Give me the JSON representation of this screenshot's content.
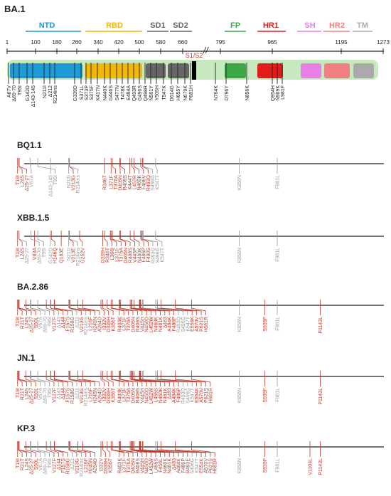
{
  "title": "BA.1",
  "colors": {
    "red": "#c0392b",
    "gray": "#9a9a9a",
    "black": "#222222",
    "track": "#c8e8c0"
  },
  "domains": [
    {
      "name": "NTD",
      "color": "#1e9ad6"
    },
    {
      "name": "RBD",
      "color": "#f2b705"
    },
    {
      "name": "SD1",
      "color": "#666666"
    },
    {
      "name": "SD2",
      "color": "#666666"
    },
    {
      "name": "FP",
      "color": "#3aa845"
    },
    {
      "name": "HR1",
      "color": "#e31b1b"
    },
    {
      "name": "SH",
      "color": "#e87fe8"
    },
    {
      "name": "HR2",
      "color": "#f08080"
    },
    {
      "name": "TM",
      "color": "#aaaaaa"
    }
  ],
  "ruler_ticks": [
    "1",
    "100",
    "180",
    "260",
    "340",
    "420",
    "500",
    "580",
    "660",
    "795",
    "965",
    "1195",
    "1273"
  ],
  "cleavage_label": "S1/S2",
  "ba1_mutations": [
    "A67V",
    "Δ69-70",
    "T95I",
    "G142D",
    "Δ143-145",
    "N211I",
    "Δ212",
    "R214ins",
    "G339D",
    "S371L",
    "S373P",
    "S375F",
    "K417N",
    "N440K",
    "G446S",
    "S477N",
    "T478K",
    "E484A",
    "Q493R",
    "G496S",
    "Q498R",
    "N501Y",
    "Y505H",
    "T547K",
    "D614G",
    "H655Y",
    "N679K",
    "P681H",
    "N764K",
    "D796Y",
    "N856K",
    "Q954H",
    "N969K",
    "L981F"
  ],
  "variants": [
    {
      "name": "BQ1.1",
      "mutations": [
        {
          "label": "T19I",
          "c": "r"
        },
        {
          "label": "L24S",
          "c": "r"
        },
        {
          "label": "Δ25-27",
          "c": "r"
        },
        {
          "label": "V67A",
          "c": "g"
        },
        {
          "label": "Δ143-145",
          "c": "g"
        },
        {
          "label": "T95I",
          "c": "g"
        },
        {
          "label": "N211I",
          "c": "g"
        },
        {
          "label": "V213G",
          "c": "r"
        },
        {
          "label": "R214ins",
          "c": "g"
        },
        {
          "label": "R346T",
          "c": "r"
        },
        {
          "label": "L371F",
          "c": "r"
        },
        {
          "label": "T376A",
          "c": "r"
        },
        {
          "label": "D405N",
          "c": "r"
        },
        {
          "label": "R408S",
          "c": "r"
        },
        {
          "label": "K444T",
          "c": "r"
        },
        {
          "label": "L452R",
          "c": "r"
        },
        {
          "label": "N460K",
          "c": "r"
        },
        {
          "label": "F486V",
          "c": "r"
        },
        {
          "label": "R493Q",
          "c": "r"
        },
        {
          "label": "S496G",
          "c": "g"
        },
        {
          "label": "K547T",
          "c": "g"
        },
        {
          "label": "K856N",
          "c": "g"
        },
        {
          "label": "F981L",
          "c": "g"
        }
      ]
    },
    {
      "name": "XBB.1.5",
      "mutations": [
        {
          "label": "T19I",
          "c": "r"
        },
        {
          "label": "L24S",
          "c": "r"
        },
        {
          "label": "Δ25-27",
          "c": "g"
        },
        {
          "label": "V83A",
          "c": "r"
        },
        {
          "label": "Δ69-70",
          "c": "g"
        },
        {
          "label": "T95I",
          "c": "g"
        },
        {
          "label": "G142D",
          "c": "g"
        },
        {
          "label": "H146Q",
          "c": "r"
        },
        {
          "label": "Q183E",
          "c": "r"
        },
        {
          "label": "N211I",
          "c": "g"
        },
        {
          "label": "V213E",
          "c": "r"
        },
        {
          "label": "R214ins",
          "c": "g"
        },
        {
          "label": "G252V",
          "c": "r"
        },
        {
          "label": "D339H",
          "c": "r"
        },
        {
          "label": "R346T",
          "c": "r"
        },
        {
          "label": "L368I",
          "c": "r"
        },
        {
          "label": "L371F",
          "c": "r"
        },
        {
          "label": "T376A",
          "c": "r"
        },
        {
          "label": "D405N",
          "c": "r"
        },
        {
          "label": "R408S",
          "c": "r"
        },
        {
          "label": "V445P",
          "c": "r"
        },
        {
          "label": "N460K",
          "c": "r"
        },
        {
          "label": "F486P",
          "c": "r"
        },
        {
          "label": "F490S",
          "c": "r"
        },
        {
          "label": "R493Q",
          "c": "g"
        },
        {
          "label": "S496G",
          "c": "g"
        },
        {
          "label": "K547T",
          "c": "g"
        },
        {
          "label": "K856N",
          "c": "g"
        },
        {
          "label": "F981L",
          "c": "g"
        }
      ]
    },
    {
      "name": "BA.2.86",
      "mutations": [
        {
          "label": "T19I",
          "c": "r"
        },
        {
          "label": "R21T",
          "c": "r"
        },
        {
          "label": "L24S",
          "c": "r"
        },
        {
          "label": "Δ25-27",
          "c": "r"
        },
        {
          "label": "S50L",
          "c": "r"
        },
        {
          "label": "V67A",
          "c": "g"
        },
        {
          "label": "Δ69-70",
          "c": "g"
        },
        {
          "label": "T95I",
          "c": "g"
        },
        {
          "label": "V127F",
          "c": "r"
        },
        {
          "label": "Δ143",
          "c": "g"
        },
        {
          "label": "Δ144",
          "c": "r"
        },
        {
          "label": "F157S",
          "c": "r"
        },
        {
          "label": "R158G",
          "c": "r"
        },
        {
          "label": "Δ211",
          "c": "g"
        },
        {
          "label": "V213G",
          "c": "r"
        },
        {
          "label": "R214ins",
          "c": "g"
        },
        {
          "label": "L216F",
          "c": "r"
        },
        {
          "label": "H245N",
          "c": "r"
        },
        {
          "label": "A264D",
          "c": "r"
        },
        {
          "label": "I332V",
          "c": "r"
        },
        {
          "label": "D339H",
          "c": "r"
        },
        {
          "label": "K356T",
          "c": "r"
        },
        {
          "label": "R403K",
          "c": "r"
        },
        {
          "label": "L371F",
          "c": "r"
        },
        {
          "label": "T376A",
          "c": "r"
        },
        {
          "label": "D405N",
          "c": "r"
        },
        {
          "label": "R408S",
          "c": "r"
        },
        {
          "label": "V445H",
          "c": "r"
        },
        {
          "label": "N450D",
          "c": "r"
        },
        {
          "label": "L452W",
          "c": "r"
        },
        {
          "label": "N460K",
          "c": "r"
        },
        {
          "label": "N481K",
          "c": "r"
        },
        {
          "label": "Δ483",
          "c": "r"
        },
        {
          "label": "A484K",
          "c": "r"
        },
        {
          "label": "F486P",
          "c": "r"
        },
        {
          "label": "R493Q",
          "c": "g"
        },
        {
          "label": "S496G",
          "c": "g"
        },
        {
          "label": "K547T",
          "c": "g"
        },
        {
          "label": "E554K",
          "c": "r"
        },
        {
          "label": "A570V",
          "c": "r"
        },
        {
          "label": "P621S",
          "c": "r"
        },
        {
          "label": "H681R",
          "c": "r"
        },
        {
          "label": "K856N",
          "c": "g"
        },
        {
          "label": "S939F",
          "c": "r"
        },
        {
          "label": "F981L",
          "c": "g"
        },
        {
          "label": "P1143L",
          "c": "r"
        }
      ]
    },
    {
      "name": "JN.1",
      "mutations": [
        {
          "label": "T19I",
          "c": "r"
        },
        {
          "label": "R21T",
          "c": "r"
        },
        {
          "label": "L24S",
          "c": "r"
        },
        {
          "label": "Δ25-27",
          "c": "r"
        },
        {
          "label": "S50L",
          "c": "r"
        },
        {
          "label": "V67A",
          "c": "g"
        },
        {
          "label": "Δ69-70",
          "c": "g"
        },
        {
          "label": "T95I",
          "c": "g"
        },
        {
          "label": "V127F",
          "c": "r"
        },
        {
          "label": "Δ143",
          "c": "g"
        },
        {
          "label": "Δ144",
          "c": "r"
        },
        {
          "label": "F157S",
          "c": "r"
        },
        {
          "label": "R158G",
          "c": "r"
        },
        {
          "label": "Δ211",
          "c": "g"
        },
        {
          "label": "V213G",
          "c": "r"
        },
        {
          "label": "R214ins",
          "c": "g"
        },
        {
          "label": "L216F",
          "c": "r"
        },
        {
          "label": "H245N",
          "c": "r"
        },
        {
          "label": "A264D",
          "c": "r"
        },
        {
          "label": "I332V",
          "c": "r"
        },
        {
          "label": "D339H",
          "c": "r"
        },
        {
          "label": "K356T",
          "c": "r"
        },
        {
          "label": "R403K",
          "c": "r"
        },
        {
          "label": "L371F",
          "c": "r"
        },
        {
          "label": "T376A",
          "c": "r"
        },
        {
          "label": "D405N",
          "c": "r"
        },
        {
          "label": "R408S",
          "c": "r"
        },
        {
          "label": "V445H",
          "c": "r"
        },
        {
          "label": "N450D",
          "c": "r"
        },
        {
          "label": "L452W",
          "c": "r"
        },
        {
          "label": "L455S",
          "c": "r"
        },
        {
          "label": "N460K",
          "c": "r"
        },
        {
          "label": "N481K",
          "c": "r"
        },
        {
          "label": "Δ483",
          "c": "r"
        },
        {
          "label": "A484K",
          "c": "r"
        },
        {
          "label": "F486P",
          "c": "r"
        },
        {
          "label": "R493Q",
          "c": "g"
        },
        {
          "label": "S496G",
          "c": "g"
        },
        {
          "label": "K547T",
          "c": "g"
        },
        {
          "label": "E554K",
          "c": "r"
        },
        {
          "label": "A570V",
          "c": "r"
        },
        {
          "label": "P621S",
          "c": "r"
        },
        {
          "label": "H681R",
          "c": "r"
        },
        {
          "label": "K856N",
          "c": "g"
        },
        {
          "label": "S939F",
          "c": "r"
        },
        {
          "label": "F981L",
          "c": "g"
        },
        {
          "label": "P1143L",
          "c": "r"
        }
      ]
    },
    {
      "name": "KP.3",
      "mutations": [
        {
          "label": "T19I",
          "c": "r"
        },
        {
          "label": "R21T",
          "c": "r"
        },
        {
          "label": "L24S",
          "c": "r"
        },
        {
          "label": "Δ25-27",
          "c": "r"
        },
        {
          "label": "S50L",
          "c": "r"
        },
        {
          "label": "V67A",
          "c": "g"
        },
        {
          "label": "Δ69-70",
          "c": "g"
        },
        {
          "label": "T95I",
          "c": "g"
        },
        {
          "label": "V127F",
          "c": "r"
        },
        {
          "label": "Δ144",
          "c": "r"
        },
        {
          "label": "F157S",
          "c": "r"
        },
        {
          "label": "R158G",
          "c": "r"
        },
        {
          "label": "Δ211",
          "c": "g"
        },
        {
          "label": "V213G",
          "c": "r"
        },
        {
          "label": "R214ins",
          "c": "g"
        },
        {
          "label": "L216F",
          "c": "r"
        },
        {
          "label": "H245N",
          "c": "r"
        },
        {
          "label": "A264D",
          "c": "r"
        },
        {
          "label": "I332V",
          "c": "r"
        },
        {
          "label": "D339H",
          "c": "r"
        },
        {
          "label": "K356T",
          "c": "r"
        },
        {
          "label": "R403K",
          "c": "r"
        },
        {
          "label": "L371F",
          "c": "r"
        },
        {
          "label": "T376A",
          "c": "r"
        },
        {
          "label": "D405N",
          "c": "r"
        },
        {
          "label": "R408S",
          "c": "r"
        },
        {
          "label": "V445H",
          "c": "r"
        },
        {
          "label": "N450D",
          "c": "r"
        },
        {
          "label": "L452W",
          "c": "r"
        },
        {
          "label": "L455S",
          "c": "r"
        },
        {
          "label": "F456L",
          "c": "r"
        },
        {
          "label": "N460K",
          "c": "r"
        },
        {
          "label": "N481K",
          "c": "r"
        },
        {
          "label": "Δ483",
          "c": "r"
        },
        {
          "label": "A484K",
          "c": "r"
        },
        {
          "label": "F486P",
          "c": "r"
        },
        {
          "label": "R493E",
          "c": "r"
        },
        {
          "label": "S496G",
          "c": "g"
        },
        {
          "label": "K547T",
          "c": "g"
        },
        {
          "label": "E554K",
          "c": "r"
        },
        {
          "label": "A570V",
          "c": "r"
        },
        {
          "label": "P621S",
          "c": "r"
        },
        {
          "label": "H681R",
          "c": "r"
        },
        {
          "label": "K856N",
          "c": "g"
        },
        {
          "label": "S939F",
          "c": "r"
        },
        {
          "label": "F981L",
          "c": "g"
        },
        {
          "label": "V1104L",
          "c": "r"
        },
        {
          "label": "P1143L",
          "c": "r"
        }
      ]
    }
  ]
}
